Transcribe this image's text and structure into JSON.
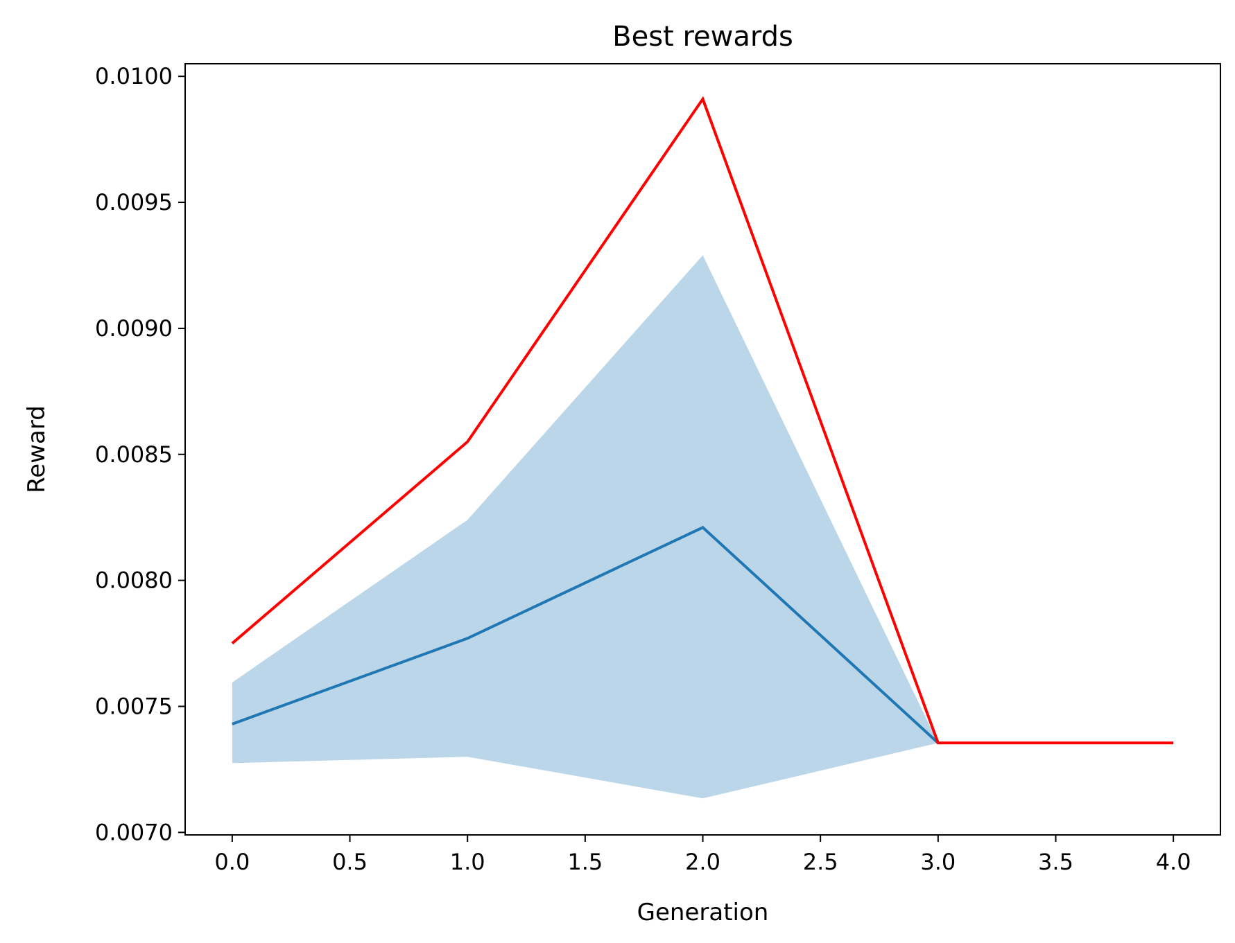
{
  "chart_data": {
    "type": "line",
    "title": "Best rewards",
    "xlabel": "Generation",
    "ylabel": "Reward",
    "xlim": [
      -0.2,
      4.2
    ],
    "ylim": [
      0.00699,
      0.01005
    ],
    "x_ticks": [
      "0.0",
      "0.5",
      "1.0",
      "1.5",
      "2.0",
      "2.5",
      "3.0",
      "3.5",
      "4.0"
    ],
    "y_ticks": [
      "0.0070",
      "0.0075",
      "0.0080",
      "0.0085",
      "0.0090",
      "0.0095",
      "0.0100"
    ],
    "grid": false,
    "legend": "none",
    "x": [
      0,
      1,
      2,
      3,
      4
    ],
    "series": [
      {
        "kind": "line",
        "color": "#ff0000",
        "values": [
          0.00775,
          0.00855,
          0.00991,
          0.007355,
          0.007355
        ]
      },
      {
        "kind": "line",
        "color": "#1f77b4",
        "values": [
          0.00743,
          0.00777,
          0.00821,
          0.007355,
          null
        ]
      },
      {
        "kind": "band",
        "color": "#1f77b4",
        "opacity": 0.3,
        "lower": [
          0.007275,
          0.0073,
          0.007135,
          0.007355,
          null
        ],
        "upper": [
          0.007595,
          0.00824,
          0.00929,
          0.007355,
          null
        ]
      }
    ]
  }
}
